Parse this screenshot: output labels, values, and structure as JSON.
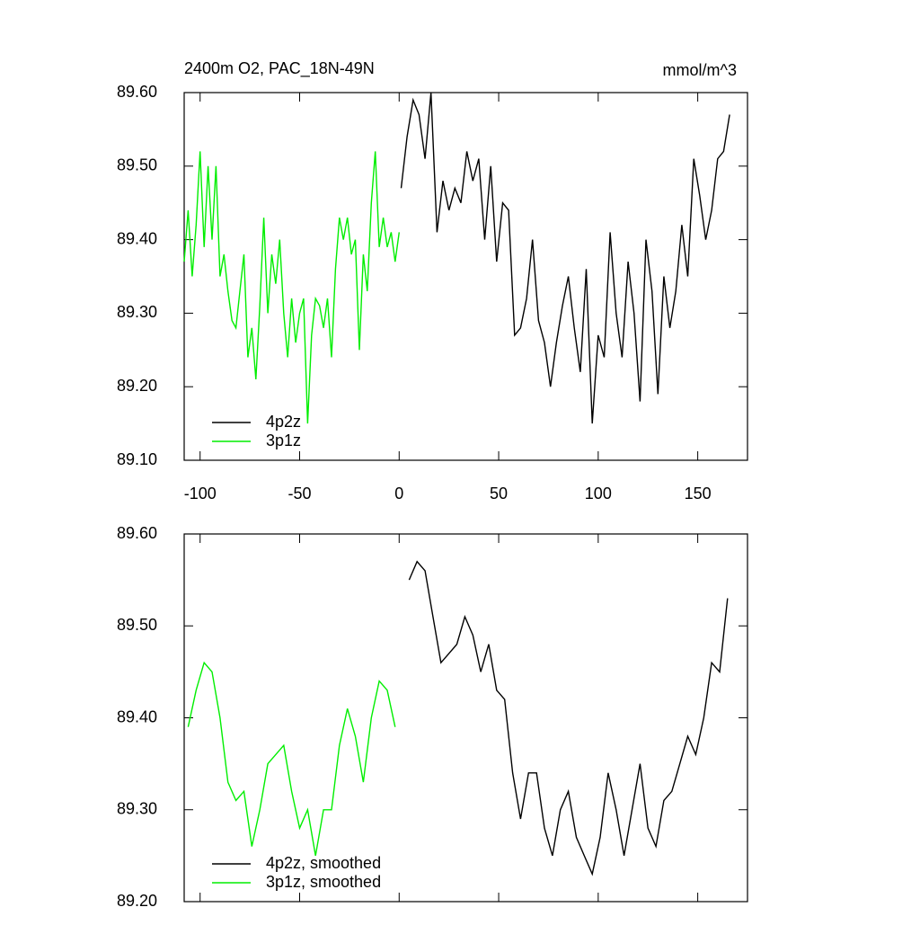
{
  "chart_data": [
    {
      "type": "line",
      "title": "2400m O2, PAC_18N-49N",
      "units": "mmol/m^3",
      "xlim": [
        -108,
        175
      ],
      "ylim": [
        89.1,
        89.6
      ],
      "xticks": [
        -100,
        -50,
        0,
        50,
        100,
        150
      ],
      "yticks": [
        {
          "value": 89.1,
          "label": "89.10"
        },
        {
          "value": 89.2,
          "label": "89.20"
        },
        {
          "value": 89.3,
          "label": "89.30"
        },
        {
          "value": 89.4,
          "label": "89.40"
        },
        {
          "value": 89.5,
          "label": "89.50"
        },
        {
          "value": 89.6,
          "label": "89.60"
        }
      ],
      "legend": "lower left",
      "series": [
        {
          "name": "4p2z",
          "color": "#000000",
          "x": [
            1,
            4,
            7,
            10,
            13,
            16,
            19,
            22,
            25,
            28,
            31,
            34,
            37,
            40,
            43,
            46,
            49,
            52,
            55,
            58,
            61,
            64,
            67,
            70,
            73,
            76,
            79,
            82,
            85,
            88,
            91,
            94,
            97,
            100,
            103,
            106,
            109,
            112,
            115,
            118,
            121,
            124,
            127,
            130,
            133,
            136,
            139,
            142,
            145,
            148,
            151,
            154,
            157,
            160,
            163,
            166
          ],
          "values": [
            89.47,
            89.54,
            89.59,
            89.57,
            89.51,
            89.6,
            89.41,
            89.48,
            89.44,
            89.47,
            89.45,
            89.52,
            89.48,
            89.51,
            89.4,
            89.5,
            89.37,
            89.45,
            89.44,
            89.27,
            89.28,
            89.32,
            89.4,
            89.29,
            89.26,
            89.2,
            89.26,
            89.31,
            89.35,
            89.28,
            89.22,
            89.36,
            89.15,
            89.27,
            89.24,
            89.41,
            89.3,
            89.24,
            89.37,
            89.3,
            89.18,
            89.4,
            89.33,
            89.19,
            89.35,
            89.28,
            89.33,
            89.42,
            89.35,
            89.51,
            89.46,
            89.4,
            89.44,
            89.51,
            89.52,
            89.57
          ]
        },
        {
          "name": "3p1z",
          "color": "#00ee00",
          "x": [
            -108,
            -106,
            -104,
            -102,
            -100,
            -98,
            -96,
            -94,
            -92,
            -90,
            -88,
            -86,
            -84,
            -82,
            -80,
            -78,
            -76,
            -74,
            -72,
            -70,
            -68,
            -66,
            -64,
            -62,
            -60,
            -58,
            -56,
            -54,
            -52,
            -50,
            -48,
            -46,
            -44,
            -42,
            -40,
            -38,
            -36,
            -34,
            -32,
            -30,
            -28,
            -26,
            -24,
            -22,
            -20,
            -18,
            -16,
            -14,
            -12,
            -10,
            -8,
            -6,
            -4,
            -2,
            0
          ],
          "values": [
            89.37,
            89.44,
            89.35,
            89.42,
            89.52,
            89.39,
            89.5,
            89.4,
            89.5,
            89.35,
            89.38,
            89.33,
            89.29,
            89.28,
            89.33,
            89.38,
            89.24,
            89.28,
            89.21,
            89.31,
            89.43,
            89.3,
            89.38,
            89.34,
            89.4,
            89.3,
            89.24,
            89.32,
            89.26,
            89.3,
            89.32,
            89.15,
            89.27,
            89.32,
            89.31,
            89.28,
            89.32,
            89.24,
            89.36,
            89.43,
            89.4,
            89.43,
            89.38,
            89.4,
            89.25,
            89.38,
            89.33,
            89.45,
            89.52,
            89.39,
            89.43,
            89.39,
            89.41,
            89.37,
            89.41
          ]
        }
      ]
    },
    {
      "type": "line",
      "xlim": [
        -108,
        175
      ],
      "ylim": [
        89.2,
        89.6
      ],
      "xticks": [
        -100,
        -50,
        0,
        50,
        100,
        150
      ],
      "yticks": [
        {
          "value": 89.2,
          "label": "89.20"
        },
        {
          "value": 89.3,
          "label": "89.30"
        },
        {
          "value": 89.4,
          "label": "89.40"
        },
        {
          "value": 89.5,
          "label": "89.50"
        },
        {
          "value": 89.6,
          "label": "89.60"
        }
      ],
      "legend": "lower left",
      "series": [
        {
          "name": "4p2z, smoothed",
          "color": "#000000",
          "x": [
            5,
            9,
            13,
            17,
            21,
            25,
            29,
            33,
            37,
            41,
            45,
            49,
            53,
            57,
            61,
            65,
            69,
            73,
            77,
            81,
            85,
            89,
            93,
            97,
            101,
            105,
            109,
            113,
            117,
            121,
            125,
            129,
            133,
            137,
            141,
            145,
            149,
            153,
            157,
            161,
            165
          ],
          "values": [
            89.55,
            89.57,
            89.56,
            89.51,
            89.46,
            89.47,
            89.48,
            89.51,
            89.49,
            89.45,
            89.48,
            89.43,
            89.42,
            89.34,
            89.29,
            89.34,
            89.34,
            89.28,
            89.25,
            89.3,
            89.32,
            89.27,
            89.25,
            89.23,
            89.27,
            89.34,
            89.3,
            89.25,
            89.3,
            89.35,
            89.28,
            89.26,
            89.31,
            89.32,
            89.35,
            89.38,
            89.36,
            89.4,
            89.46,
            89.45,
            89.53
          ]
        },
        {
          "name": "3p1z, smoothed",
          "color": "#00ee00",
          "x": [
            -106,
            -102,
            -98,
            -94,
            -90,
            -86,
            -82,
            -78,
            -74,
            -70,
            -66,
            -62,
            -58,
            -54,
            -50,
            -46,
            -42,
            -38,
            -34,
            -30,
            -26,
            -22,
            -18,
            -14,
            -10,
            -6,
            -2
          ],
          "values": [
            89.39,
            89.43,
            89.46,
            89.45,
            89.4,
            89.33,
            89.31,
            89.32,
            89.26,
            89.3,
            89.35,
            89.36,
            89.37,
            89.32,
            89.28,
            89.3,
            89.25,
            89.3,
            89.3,
            89.37,
            89.41,
            89.38,
            89.33,
            89.4,
            89.44,
            89.43,
            89.39
          ]
        }
      ]
    }
  ]
}
